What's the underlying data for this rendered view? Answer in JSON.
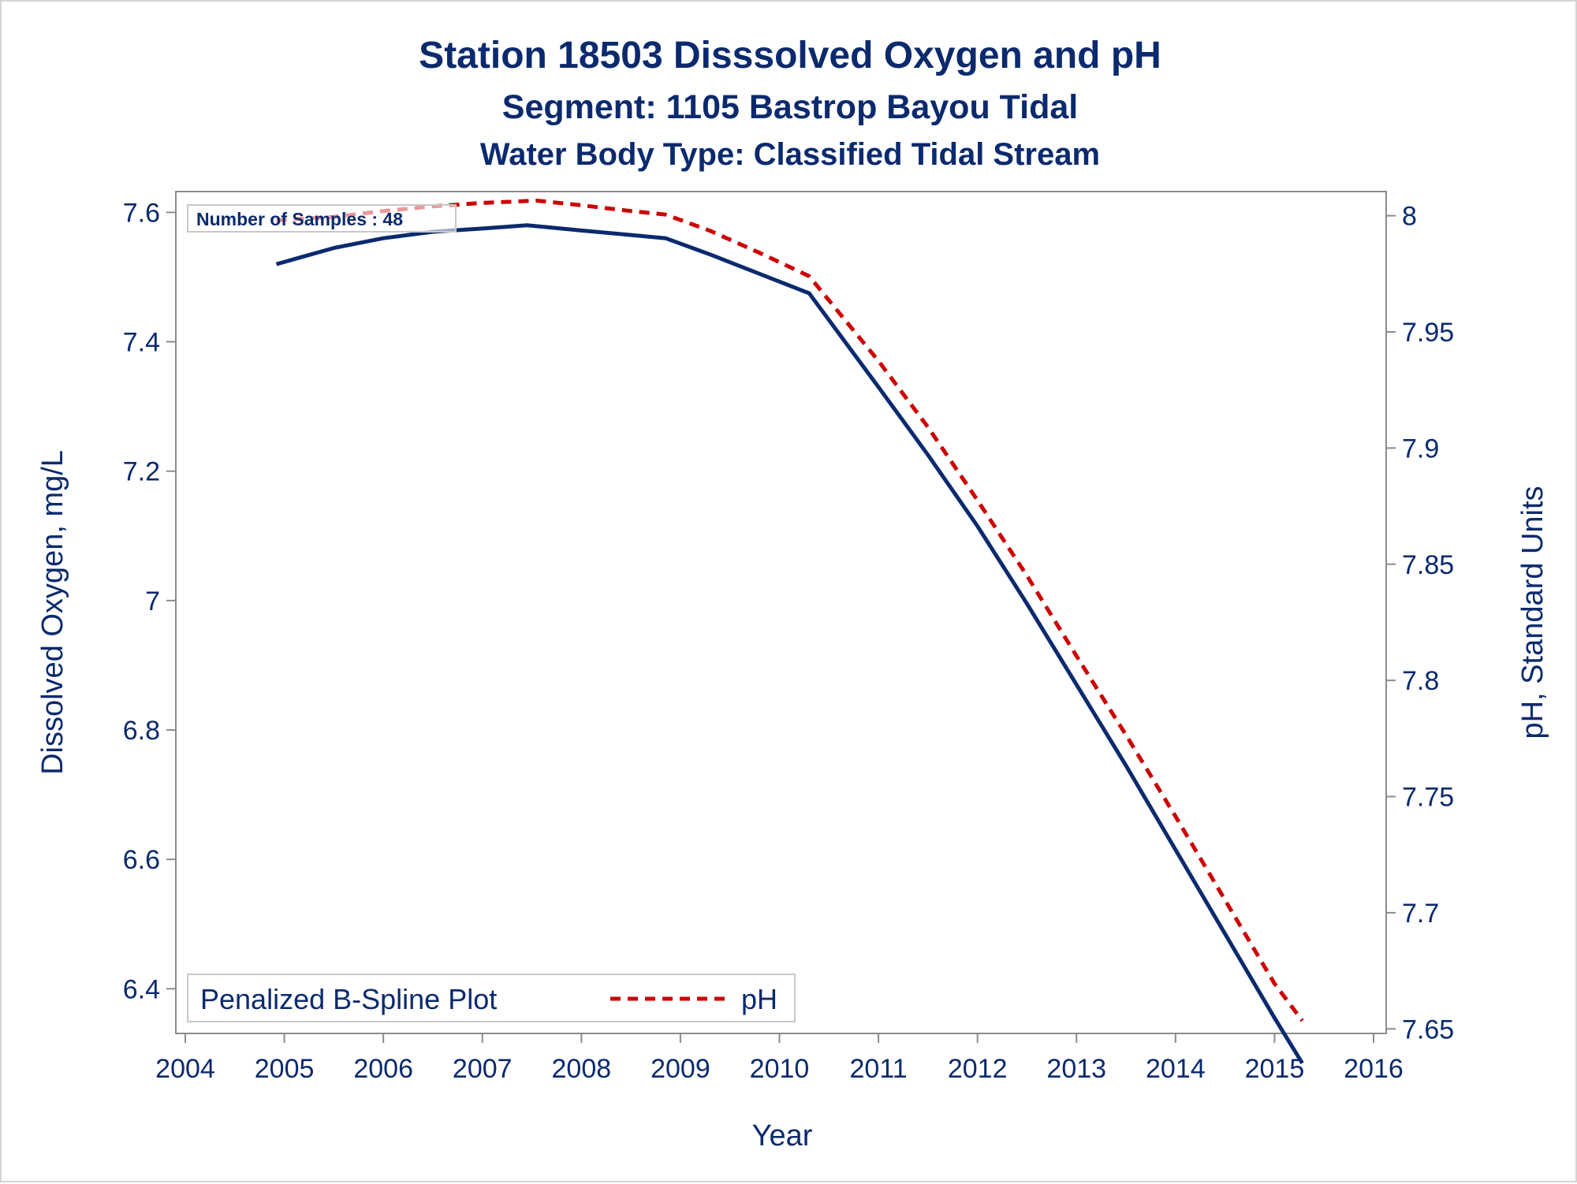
{
  "chart_data": {
    "type": "line",
    "title": "Station 18503   Disssolved Oxygen and pH",
    "subtitle": "Segment: 1105  Bastrop Bayou Tidal",
    "subtitle2": "Water Body Type: Classified Tidal Stream",
    "xlabel": "Year",
    "ylabel": "Dissolved Oxygen, mg/L",
    "y2label": "pH, Standard Units",
    "xlim": [
      2004,
      2016
    ],
    "ylim": [
      6.32,
      7.62
    ],
    "y2lim": [
      7.645,
      8.007
    ],
    "x_ticks": [
      "2004",
      "2005",
      "2006",
      "2007",
      "2008",
      "2009",
      "2010",
      "2011",
      "2012",
      "2013",
      "2014",
      "2015",
      "2016"
    ],
    "y_ticks": [
      "6.4",
      "6.6",
      "6.8",
      "7",
      "7.2",
      "7.4",
      "7.6"
    ],
    "y2_ticks": [
      "7.65",
      "7.7",
      "7.75",
      "7.8",
      "7.85",
      "7.9",
      "7.95",
      "8"
    ],
    "inset_label": "Number of Samples : 48",
    "legend_title": "Penalized B-Spline Plot",
    "legend_placement": "bottom-left",
    "grid": false,
    "series": [
      {
        "axis": "left",
        "color": "#0b2a6e",
        "dash": "solid",
        "x": [
          2004.92,
          2005.5,
          2006.0,
          2006.5,
          2007.0,
          2007.45,
          2008.0,
          2008.5,
          2008.85,
          2009.3,
          2009.8,
          2010.3,
          2011.0,
          2011.5,
          2012.0,
          2012.5,
          2013.0,
          2013.5,
          2014.0,
          2014.5,
          2015.0,
          2015.28
        ],
        "values": [
          7.52,
          7.545,
          7.56,
          7.57,
          7.575,
          7.58,
          7.572,
          7.565,
          7.56,
          7.535,
          7.505,
          7.475,
          7.33,
          7.225,
          7.115,
          6.995,
          6.87,
          6.745,
          6.615,
          6.485,
          6.355,
          6.285
        ]
      },
      {
        "name": "pH",
        "axis": "right",
        "color": "#cc0000",
        "dash": "dashed",
        "x": [
          2004.92,
          2005.5,
          2006.0,
          2006.5,
          2007.0,
          2007.55,
          2008.0,
          2008.5,
          2008.85,
          2009.3,
          2009.8,
          2010.3,
          2011.0,
          2011.5,
          2012.0,
          2012.5,
          2013.0,
          2013.5,
          2014.0,
          2014.5,
          2015.0,
          2015.28
        ],
        "values": [
          7.998,
          7.9995,
          8.002,
          8.004,
          8.0055,
          8.0065,
          8.0045,
          8.002,
          8.0005,
          7.9935,
          7.984,
          7.974,
          7.9375,
          7.909,
          7.8775,
          7.845,
          7.8105,
          7.7765,
          7.7415,
          7.7055,
          7.6695,
          7.6535
        ]
      }
    ]
  }
}
